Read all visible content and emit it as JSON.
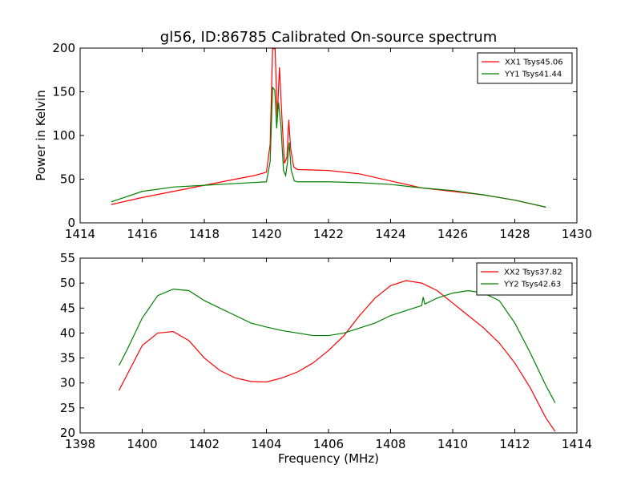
{
  "chart_data": [
    {
      "type": "line",
      "title": "gl56, ID:86785 Calibrated On-source spectrum",
      "xlabel": "",
      "ylabel": "Power in Kelvin",
      "xlim": [
        1414,
        1430
      ],
      "ylim": [
        0,
        200
      ],
      "xticks": [
        "1414",
        "1416",
        "1418",
        "1420",
        "1422",
        "1424",
        "1426",
        "1428",
        "1430"
      ],
      "yticks": [
        "0",
        "50",
        "100",
        "150",
        "200"
      ],
      "legend_position": "top-right",
      "grid": false,
      "series": [
        {
          "name": "XX1 Tsys45.06",
          "color": "#ff0000",
          "points": [
            [
              1415,
              21
            ],
            [
              1416,
              29
            ],
            [
              1417,
              36
            ],
            [
              1418,
              43
            ],
            [
              1419,
              50
            ],
            [
              1419.6,
              54
            ],
            [
              1420,
              58
            ],
            [
              1420.12,
              90
            ],
            [
              1420.2,
              200
            ],
            [
              1420.28,
              199
            ],
            [
              1420.35,
              120
            ],
            [
              1420.42,
              178
            ],
            [
              1420.5,
              120
            ],
            [
              1420.58,
              68
            ],
            [
              1420.66,
              75
            ],
            [
              1420.72,
              118
            ],
            [
              1420.78,
              85
            ],
            [
              1420.88,
              64
            ],
            [
              1421,
              61
            ],
            [
              1422,
              60
            ],
            [
              1423,
              56
            ],
            [
              1424,
              48
            ],
            [
              1425,
              40
            ],
            [
              1426,
              36
            ],
            [
              1427,
              32
            ],
            [
              1428,
              26
            ],
            [
              1429,
              18
            ]
          ]
        },
        {
          "name": "YY1 Tsys41.44",
          "color": "#008000",
          "points": [
            [
              1415,
              24
            ],
            [
              1416,
              36
            ],
            [
              1417,
              41
            ],
            [
              1418,
              43
            ],
            [
              1419,
              45
            ],
            [
              1420,
              47
            ],
            [
              1420.12,
              70
            ],
            [
              1420.2,
              155
            ],
            [
              1420.27,
              152
            ],
            [
              1420.33,
              108
            ],
            [
              1420.39,
              138
            ],
            [
              1420.47,
              110
            ],
            [
              1420.55,
              60
            ],
            [
              1420.62,
              54
            ],
            [
              1420.68,
              70
            ],
            [
              1420.73,
              92
            ],
            [
              1420.8,
              60
            ],
            [
              1420.9,
              48
            ],
            [
              1421,
              47
            ],
            [
              1422,
              47
            ],
            [
              1423,
              46
            ],
            [
              1424,
              44
            ],
            [
              1425,
              40
            ],
            [
              1426,
              37
            ],
            [
              1427,
              32
            ],
            [
              1428,
              26
            ],
            [
              1429,
              18
            ]
          ]
        }
      ]
    },
    {
      "type": "line",
      "title": "",
      "xlabel": "Frequency (MHz)",
      "ylabel": "",
      "xlim": [
        1398,
        1414
      ],
      "ylim": [
        20,
        55
      ],
      "xticks": [
        "1398",
        "1400",
        "1402",
        "1404",
        "1406",
        "1408",
        "1410",
        "1412",
        "1414"
      ],
      "yticks": [
        "20",
        "25",
        "30",
        "35",
        "40",
        "45",
        "50",
        "55"
      ],
      "legend_position": "top-right",
      "grid": false,
      "series": [
        {
          "name": "XX2 Tsys37.82",
          "color": "#ff0000",
          "points": [
            [
              1399.25,
              28.5
            ],
            [
              1399.5,
              31.5
            ],
            [
              1400,
              37.5
            ],
            [
              1400.5,
              40
            ],
            [
              1401,
              40.3
            ],
            [
              1401.5,
              38.5
            ],
            [
              1402,
              35
            ],
            [
              1402.5,
              32.5
            ],
            [
              1403,
              31
            ],
            [
              1403.5,
              30.3
            ],
            [
              1404,
              30.2
            ],
            [
              1404.5,
              31
            ],
            [
              1405,
              32.2
            ],
            [
              1405.5,
              34
            ],
            [
              1406,
              36.5
            ],
            [
              1406.5,
              39.5
            ],
            [
              1407,
              43.5
            ],
            [
              1407.5,
              47
            ],
            [
              1408,
              49.5
            ],
            [
              1408.5,
              50.5
            ],
            [
              1409,
              50
            ],
            [
              1409.5,
              48.5
            ],
            [
              1410,
              46
            ],
            [
              1410.5,
              43.5
            ],
            [
              1411,
              41
            ],
            [
              1411.5,
              38
            ],
            [
              1412,
              34
            ],
            [
              1412.5,
              29
            ],
            [
              1413,
              23
            ],
            [
              1413.3,
              20.3
            ]
          ]
        },
        {
          "name": "YY2 Tsys42.63",
          "color": "#008000",
          "points": [
            [
              1399.25,
              33.5
            ],
            [
              1399.5,
              36.5
            ],
            [
              1400,
              43
            ],
            [
              1400.5,
              47.5
            ],
            [
              1401,
              48.8
            ],
            [
              1401.5,
              48.5
            ],
            [
              1402,
              46.5
            ],
            [
              1402.5,
              45
            ],
            [
              1403,
              43.5
            ],
            [
              1403.5,
              42
            ],
            [
              1404,
              41.2
            ],
            [
              1404.5,
              40.5
            ],
            [
              1405,
              40
            ],
            [
              1405.5,
              39.5
            ],
            [
              1406,
              39.5
            ],
            [
              1406.5,
              40
            ],
            [
              1407,
              41
            ],
            [
              1407.5,
              42
            ],
            [
              1408,
              43.5
            ],
            [
              1408.5,
              44.5
            ],
            [
              1409,
              45.5
            ],
            [
              1409.05,
              47.2
            ],
            [
              1409.1,
              45.8
            ],
            [
              1409.5,
              47
            ],
            [
              1410,
              48
            ],
            [
              1410.5,
              48.5
            ],
            [
              1411,
              48
            ],
            [
              1411.5,
              46.5
            ],
            [
              1412,
              42
            ],
            [
              1412.5,
              36
            ],
            [
              1413,
              29.5
            ],
            [
              1413.3,
              26
            ]
          ]
        }
      ]
    }
  ]
}
